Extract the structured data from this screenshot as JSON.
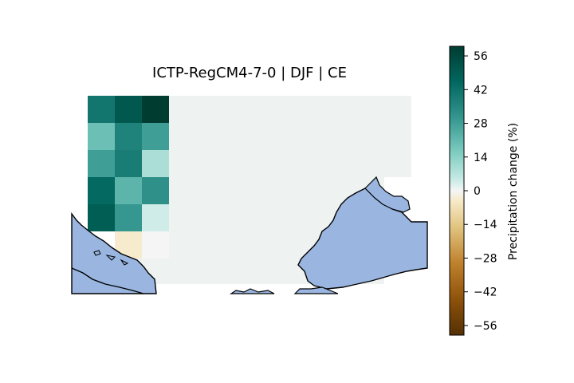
{
  "title": "ICTP-RegCM4-7-0 | DJF | CE",
  "colorbar": {
    "label": "Precipitation change (%)",
    "ticks": [
      "56",
      "42",
      "28",
      "14",
      "0",
      "−14",
      "−28",
      "−42",
      "−56"
    ],
    "range": [
      -60,
      60
    ]
  },
  "map": {
    "sea_color": "#99b5e0",
    "land_cells": {
      "columns": 3,
      "rows": 6,
      "values": [
        [
          40,
          50,
          60
        ],
        [
          19,
          36,
          28
        ],
        [
          28,
          38,
          9
        ],
        [
          44,
          22,
          32
        ],
        [
          48,
          30,
          4
        ],
        [
          null,
          -4,
          0
        ]
      ]
    },
    "background_value": 1
  }
}
